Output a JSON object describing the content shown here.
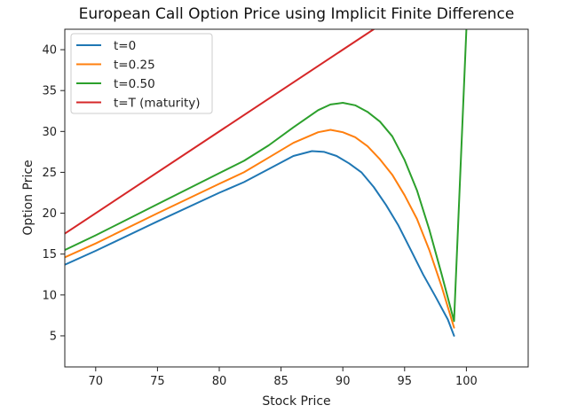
{
  "chart_data": {
    "type": "line",
    "title": "European Call Option Price using Implicit Finite Difference",
    "xlabel": "Stock Price",
    "ylabel": "Option Price",
    "xlim": [
      67.5,
      105
    ],
    "ylim": [
      1.2,
      42.5
    ],
    "xticks": [
      70,
      75,
      80,
      85,
      90,
      95,
      100
    ],
    "yticks": [
      5,
      10,
      15,
      20,
      25,
      30,
      35,
      40
    ],
    "grid": false,
    "legend_position": "top-left",
    "series": [
      {
        "name": "t=0",
        "color": "#1f77b4",
        "points": [
          [
            67.5,
            13.7
          ],
          [
            70,
            15.4
          ],
          [
            75,
            19.0
          ],
          [
            80,
            22.5
          ],
          [
            82,
            23.8
          ],
          [
            84,
            25.4
          ],
          [
            86,
            27.0
          ],
          [
            87.5,
            27.6
          ],
          [
            88.5,
            27.5
          ],
          [
            89.5,
            27.0
          ],
          [
            90.5,
            26.1
          ],
          [
            91.5,
            25.0
          ],
          [
            92.5,
            23.2
          ],
          [
            93.5,
            21.0
          ],
          [
            94.5,
            18.5
          ],
          [
            95.5,
            15.5
          ],
          [
            96.5,
            12.5
          ],
          [
            97.5,
            9.8
          ],
          [
            98.5,
            7.0
          ],
          [
            99,
            5.0
          ]
        ]
      },
      {
        "name": "t=0.25",
        "color": "#ff7f0e",
        "points": [
          [
            67.5,
            14.6
          ],
          [
            70,
            16.3
          ],
          [
            75,
            20.0
          ],
          [
            80,
            23.6
          ],
          [
            82,
            25.0
          ],
          [
            84,
            26.8
          ],
          [
            86,
            28.6
          ],
          [
            88,
            29.9
          ],
          [
            89,
            30.2
          ],
          [
            90,
            29.9
          ],
          [
            91,
            29.3
          ],
          [
            92,
            28.2
          ],
          [
            93,
            26.6
          ],
          [
            94,
            24.7
          ],
          [
            95,
            22.2
          ],
          [
            96,
            19.3
          ],
          [
            97,
            15.5
          ],
          [
            98,
            11.0
          ],
          [
            99,
            6.0
          ]
        ]
      },
      {
        "name": "t=0.50",
        "color": "#2ca02c",
        "points": [
          [
            67.5,
            15.5
          ],
          [
            70,
            17.3
          ],
          [
            75,
            21.1
          ],
          [
            80,
            24.9
          ],
          [
            82,
            26.4
          ],
          [
            84,
            28.3
          ],
          [
            86,
            30.5
          ],
          [
            88,
            32.6
          ],
          [
            89,
            33.3
          ],
          [
            90,
            33.5
          ],
          [
            91,
            33.2
          ],
          [
            92,
            32.4
          ],
          [
            93,
            31.2
          ],
          [
            94,
            29.4
          ],
          [
            95,
            26.5
          ],
          [
            96,
            22.8
          ],
          [
            97,
            18.0
          ],
          [
            98,
            12.5
          ],
          [
            99,
            6.8
          ],
          [
            100,
            42.5
          ]
        ]
      },
      {
        "name": "t=T (maturity)",
        "color": "#d62728",
        "points": [
          [
            67.5,
            17.5
          ],
          [
            92.5,
            42.5
          ]
        ]
      }
    ]
  }
}
